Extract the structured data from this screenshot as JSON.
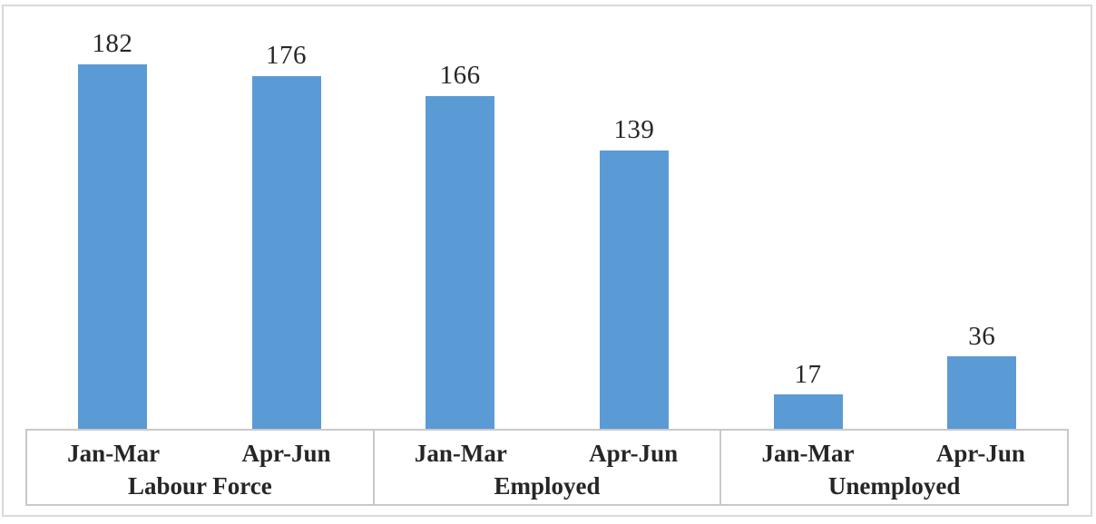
{
  "chart": {
    "title": "",
    "bar_color": "#5B9BD5",
    "line_color": "#C9C9C9",
    "outer_border_color": "#D9D9D9",
    "text_color": "#262626",
    "background_color": "#FFFFFF"
  },
  "chart_data": {
    "type": "bar",
    "title": "",
    "xlabel": "",
    "ylabel": "",
    "ylim": [
      0,
      200
    ],
    "grid": false,
    "legend": false,
    "data_labels": true,
    "bar_color": "#5B9BD5",
    "categories": [
      "Jan-Mar",
      "Apr-Jun",
      "Jan-Mar",
      "Apr-Jun",
      "Jan-Mar",
      "Apr-Jun"
    ],
    "values": [
      182,
      176,
      166,
      139,
      17,
      36
    ],
    "groups": [
      {
        "label": "Labour Force",
        "bars": [
          {
            "label": "Jan-Mar",
            "value": 182
          },
          {
            "label": "Apr-Jun",
            "value": 176
          }
        ]
      },
      {
        "label": "Employed",
        "bars": [
          {
            "label": "Jan-Mar",
            "value": 166
          },
          {
            "label": "Apr-Jun",
            "value": 139
          }
        ]
      },
      {
        "label": "Unemployed",
        "bars": [
          {
            "label": "Jan-Mar",
            "value": 17
          },
          {
            "label": "Apr-Jun",
            "value": 36
          }
        ]
      }
    ]
  }
}
